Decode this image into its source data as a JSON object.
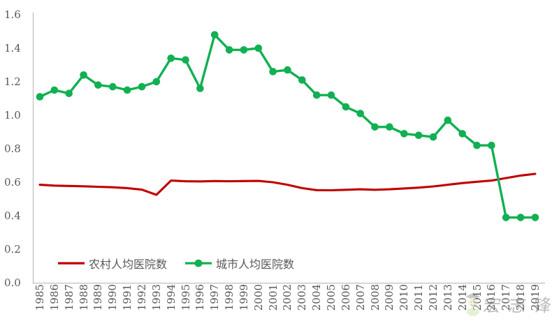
{
  "chart_data": {
    "type": "line",
    "title": "",
    "xlabel": "",
    "ylabel": "",
    "categories": [
      "1985",
      "1986",
      "1987",
      "1988",
      "1989",
      "1990",
      "1991",
      "1992",
      "1993",
      "1994",
      "1995",
      "1996",
      "1997",
      "1998",
      "1999",
      "2000",
      "2001",
      "2002",
      "2003",
      "2004",
      "2005",
      "2006",
      "2007",
      "2008",
      "2009",
      "2010",
      "2011",
      "2012",
      "2013",
      "2014",
      "2015",
      "2016",
      "2017",
      "2018",
      "2019"
    ],
    "series": [
      {
        "name": "农村人均医院数",
        "color": "#C00000",
        "marker": "none",
        "values": [
          0.585,
          0.58,
          0.578,
          0.576,
          0.573,
          0.57,
          0.565,
          0.556,
          0.525,
          0.61,
          0.606,
          0.605,
          0.607,
          0.606,
          0.607,
          0.608,
          0.6,
          0.585,
          0.565,
          0.553,
          0.552,
          0.555,
          0.558,
          0.555,
          0.558,
          0.563,
          0.568,
          0.575,
          0.585,
          0.595,
          0.603,
          0.61,
          0.625,
          0.64,
          0.65
        ]
      },
      {
        "name": "城市人均医院数",
        "color": "#11B052",
        "marker": "circle",
        "values": [
          1.11,
          1.15,
          1.13,
          1.24,
          1.18,
          1.17,
          1.15,
          1.17,
          1.2,
          1.34,
          1.33,
          1.16,
          1.48,
          1.39,
          1.39,
          1.4,
          1.26,
          1.27,
          1.21,
          1.12,
          1.12,
          1.05,
          1.01,
          0.93,
          0.93,
          0.89,
          0.88,
          0.87,
          0.97,
          0.89,
          0.82,
          0.82,
          0.39,
          0.39,
          0.39
        ]
      }
    ],
    "ylim": [
      0,
      1.6
    ],
    "y_tick_labels": [
      "0.0",
      "0.2",
      "0.4",
      "0.6",
      "0.8",
      "1.0",
      "1.2",
      "1.4",
      "1.6"
    ],
    "grid": false,
    "legend_position": "bottom-left",
    "axis_color": "#BFBFBF",
    "tick_text_color": "#595959"
  },
  "watermark": {
    "text": "宏志锋"
  }
}
